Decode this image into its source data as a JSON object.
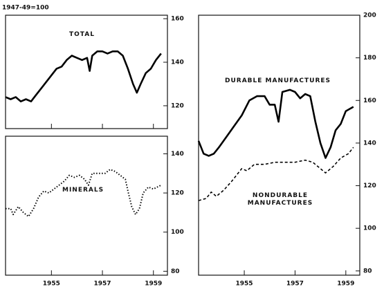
{
  "chart_data": [
    {
      "type": "line",
      "note": "1947-49=100",
      "xlim": [
        1953.2,
        1959.55
      ],
      "xticks": [
        1955,
        1957,
        1959
      ],
      "xtick_labels": false,
      "ylim": [
        109.5,
        161.6
      ],
      "yticks": [
        120,
        140,
        160
      ],
      "series": [
        {
          "name": "TOTAL",
          "color": "#000000",
          "style": "solid",
          "x": [
            1953.2,
            1953.4,
            1953.6,
            1953.8,
            1954.0,
            1954.2,
            1954.4,
            1954.6,
            1954.8,
            1955.0,
            1955.2,
            1955.4,
            1955.6,
            1955.8,
            1956.0,
            1956.2,
            1956.4,
            1956.5,
            1956.6,
            1956.8,
            1957.0,
            1957.2,
            1957.4,
            1957.6,
            1957.8,
            1958.0,
            1958.2,
            1958.35,
            1958.5,
            1958.7,
            1958.9,
            1959.1,
            1959.3
          ],
          "values": [
            124,
            123,
            124,
            122,
            123,
            122,
            125,
            128,
            131,
            134,
            137,
            138,
            141,
            143,
            142,
            141,
            142,
            136,
            143,
            145,
            145,
            144,
            145,
            145,
            143,
            137,
            130,
            126,
            130,
            135,
            137,
            141,
            144
          ]
        }
      ]
    },
    {
      "type": "line",
      "xlim": [
        1953.2,
        1959.55
      ],
      "xticks": [
        1955,
        1957,
        1959
      ],
      "xtick_labels": true,
      "ylim": [
        78,
        149
      ],
      "yticks": [
        80,
        100,
        120,
        140
      ],
      "series": [
        {
          "name": "MINERALS",
          "color": "#000000",
          "style": "dotted",
          "x": [
            1953.2,
            1953.4,
            1953.5,
            1953.7,
            1953.9,
            1954.1,
            1954.3,
            1954.5,
            1954.7,
            1954.9,
            1955.1,
            1955.3,
            1955.5,
            1955.7,
            1955.9,
            1956.1,
            1956.3,
            1956.45,
            1956.6,
            1956.9,
            1957.1,
            1957.3,
            1957.5,
            1957.7,
            1957.9,
            1958.0,
            1958.15,
            1958.3,
            1958.45,
            1958.6,
            1958.8,
            1959.0,
            1959.3
          ],
          "values": [
            112,
            112,
            109,
            113,
            110,
            108,
            112,
            118,
            121,
            120,
            122,
            124,
            126,
            129,
            128,
            129,
            127,
            124,
            130,
            130,
            130,
            132,
            131,
            129,
            127,
            121,
            113,
            109,
            112,
            120,
            123,
            122,
            124
          ]
        }
      ]
    },
    {
      "type": "line",
      "xlim": [
        1953.2,
        1959.55
      ],
      "xticks": [
        1955,
        1957,
        1959
      ],
      "xtick_labels": true,
      "ylim": [
        78,
        200
      ],
      "yticks": [
        80,
        100,
        120,
        140,
        160,
        180,
        200
      ],
      "series": [
        {
          "name": "DURABLE MANUFACTURES",
          "color": "#000000",
          "style": "solid",
          "x": [
            1953.2,
            1953.4,
            1953.6,
            1953.8,
            1954.0,
            1954.3,
            1954.6,
            1954.9,
            1955.2,
            1955.5,
            1955.8,
            1956.0,
            1956.2,
            1956.35,
            1956.5,
            1956.8,
            1957.0,
            1957.2,
            1957.4,
            1957.6,
            1957.8,
            1958.0,
            1958.2,
            1958.4,
            1958.6,
            1958.8,
            1959.0,
            1959.3
          ],
          "values": [
            141,
            135,
            134,
            135,
            138,
            143,
            148,
            153,
            160,
            162,
            162,
            158,
            158,
            150,
            164,
            165,
            164,
            161,
            163,
            162,
            150,
            140,
            133,
            138,
            146,
            149,
            155,
            157
          ]
        },
        {
          "name": "NONDURABLE MANUFACTURES",
          "color": "#000000",
          "style": "dashed",
          "x": [
            1953.2,
            1953.5,
            1953.7,
            1953.9,
            1954.2,
            1954.5,
            1954.9,
            1955.1,
            1955.4,
            1955.8,
            1956.2,
            1956.6,
            1957.0,
            1957.4,
            1957.7,
            1958.0,
            1958.2,
            1958.5,
            1958.8,
            1959.1,
            1959.3
          ],
          "values": [
            113,
            114,
            117,
            115,
            118,
            122,
            128,
            127,
            130,
            130,
            131,
            131,
            131,
            132,
            131,
            128,
            126,
            129,
            133,
            135,
            138
          ]
        }
      ]
    }
  ]
}
